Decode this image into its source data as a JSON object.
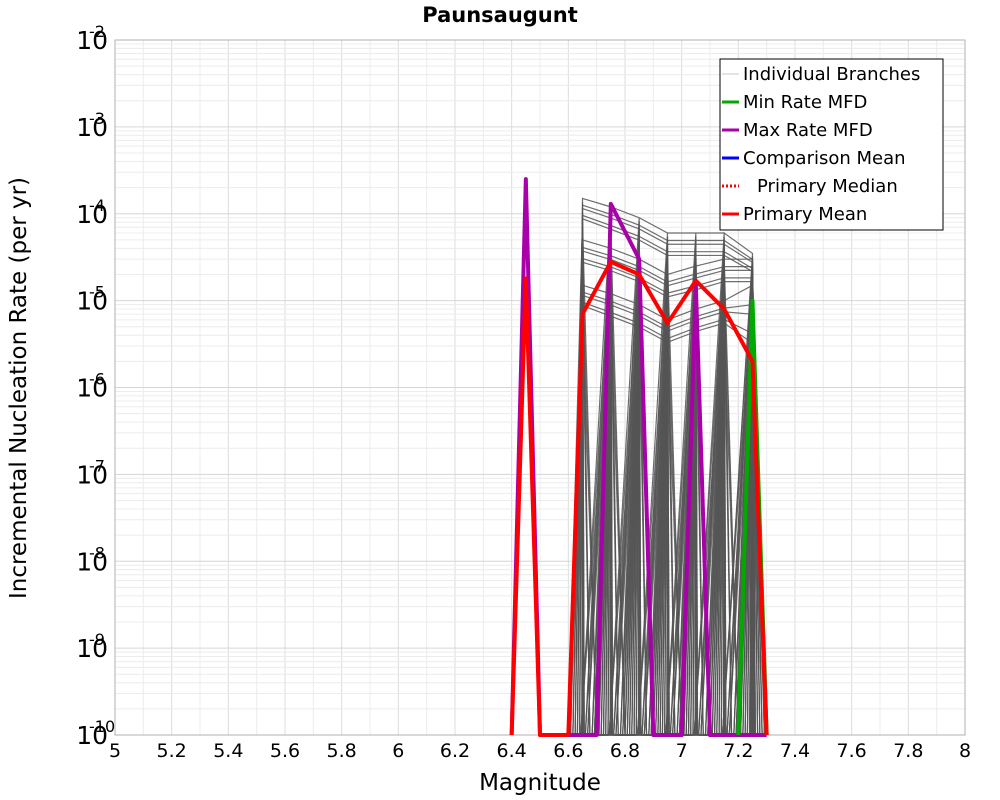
{
  "chart_data": {
    "type": "line",
    "title": "Paunsaugunt",
    "xlabel": "Magnitude",
    "ylabel": "Incremental Nucleation Rate (per yr)",
    "xlim": [
      5,
      8
    ],
    "ylim": [
      1e-10,
      0.01
    ],
    "yscale": "log",
    "grid": true,
    "legend_position": "top-right",
    "x_ticks": [
      "5",
      "5.2",
      "5.4",
      "5.6",
      "5.8",
      "6",
      "6.2",
      "6.4",
      "6.6",
      "6.8",
      "7",
      "7.2",
      "7.4",
      "7.6",
      "7.8",
      "8"
    ],
    "y_ticks": [
      {
        "base": "10",
        "exp": "-2"
      },
      {
        "base": "10",
        "exp": "-3"
      },
      {
        "base": "10",
        "exp": "-4"
      },
      {
        "base": "10",
        "exp": "-5"
      },
      {
        "base": "10",
        "exp": "-6"
      },
      {
        "base": "10",
        "exp": "-7"
      },
      {
        "base": "10",
        "exp": "-8"
      },
      {
        "base": "10",
        "exp": "-9"
      },
      {
        "base": "10",
        "exp": "-10"
      }
    ],
    "legend": [
      {
        "label": "Individual Branches",
        "color": "#c8c8c8",
        "style": "solid"
      },
      {
        "label": "Min Rate MFD",
        "color": "#00aa00",
        "style": "solid"
      },
      {
        "label": "Max Rate MFD",
        "color": "#aa00aa",
        "style": "solid"
      },
      {
        "label": "Comparison Mean",
        "color": "#0000ff",
        "style": "solid"
      },
      {
        "label": "Primary Median",
        "color": "#ff0000",
        "style": "dotted"
      },
      {
        "label": "Primary Mean",
        "color": "#ff0000",
        "style": "solid"
      }
    ],
    "branch_color": "#555555",
    "branch_groups": [
      {
        "name": "group-a",
        "x": [
          6.65,
          6.75,
          6.85,
          6.95,
          7.05,
          7.15,
          7.25
        ],
        "top": [
          0.00015,
          0.00012,
          9e-05,
          6e-05,
          6e-05,
          6e-05,
          3.5e-05
        ],
        "bottom": [
          8e-05,
          6e-05,
          4.5e-05,
          3e-05,
          3e-05,
          3e-05,
          2e-05
        ]
      },
      {
        "name": "group-b",
        "x": [
          6.65,
          6.75,
          6.85,
          6.95,
          7.05,
          7.15,
          7.25
        ],
        "top": [
          5e-05,
          4e-05,
          3e-05,
          2e-05,
          2.5e-05,
          3e-05,
          3e-05
        ],
        "bottom": [
          2.5e-05,
          2e-05,
          1.5e-05,
          1e-05,
          1.2e-05,
          1.5e-05,
          1.5e-05
        ]
      },
      {
        "name": "group-c",
        "x": [
          6.65,
          6.75,
          6.85,
          6.95,
          7.05,
          7.15,
          7.25
        ],
        "top": [
          1.5e-05,
          1.2e-05,
          9e-06,
          6e-06,
          8e-06,
          1e-05,
          1.5e-05
        ],
        "bottom": [
          8e-06,
          6e-06,
          4.5e-06,
          3e-06,
          4e-06,
          5e-06,
          2.5e-06
        ]
      }
    ],
    "series": [
      {
        "name": "Max Rate MFD",
        "color": "#aa00aa",
        "x": [
          6.4,
          6.45,
          6.5,
          6.6,
          6.7,
          6.75,
          6.85,
          6.9,
          7.0,
          7.05,
          7.1,
          7.2,
          7.3
        ],
        "y": [
          1e-10,
          0.00025,
          1e-10,
          1e-10,
          1e-10,
          0.00013,
          3e-05,
          1e-10,
          1e-10,
          1.5e-05,
          1e-10,
          1e-10,
          1e-10
        ]
      },
      {
        "name": "Min Rate MFD",
        "color": "#00aa00",
        "x": [
          7.2,
          7.25,
          7.3
        ],
        "y": [
          1e-10,
          1e-05,
          1e-10
        ]
      },
      {
        "name": "Primary Mean",
        "color": "#ff0000",
        "x": [
          6.4,
          6.45,
          6.5,
          6.6,
          6.65,
          6.75,
          6.85,
          6.95,
          7.05,
          7.15,
          7.25,
          7.3
        ],
        "y": [
          1e-10,
          1.8e-05,
          1e-10,
          1e-10,
          7e-06,
          2.8e-05,
          2e-05,
          5.5e-06,
          1.7e-05,
          8e-06,
          2e-06,
          1e-10
        ]
      }
    ]
  }
}
